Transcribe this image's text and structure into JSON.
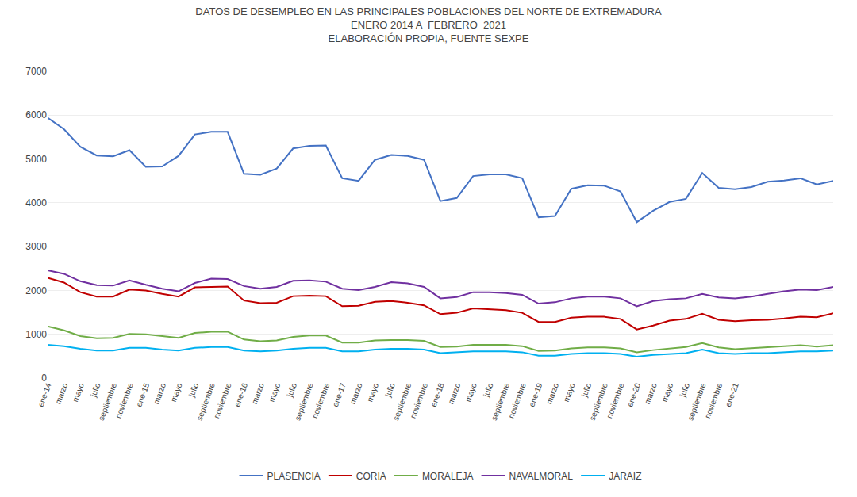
{
  "chart_data": {
    "type": "line",
    "title": "DATOS DE DESEMPLEO EN LAS PRINCIPALES POBLACIONES DEL NORTE DE EXTREMADURA",
    "subtitle": [
      "ENERO 2014 A  FEBRERO  2021",
      "ELABORACIÓN PROPIA, FUENTE SEXPE"
    ],
    "categories": [
      "ene-14",
      "marzo",
      "mayo",
      "julio",
      "septiembre",
      "noviembre",
      "ene-15",
      "marzo",
      "mayo",
      "julio",
      "septiembre",
      "noviembre",
      "ene-16",
      "marzo",
      "mayo",
      "julio",
      "septiembre",
      "noviembre",
      "ene-17",
      "marzo",
      "mayo",
      "julio",
      "septiembre",
      "noviembre",
      "ene-18",
      "marzo",
      "mayo",
      "julio",
      "septiembre",
      "noviembre",
      "ene-19",
      "marzo",
      "mayo",
      "julio",
      "septiembre",
      "noviembre",
      "ene-20",
      "marzo",
      "mayo",
      "julio",
      "septiembre",
      "noviembre",
      "ene-21",
      null,
      null,
      null,
      null,
      null,
      null
    ],
    "series": [
      {
        "name": "PLASENCIA",
        "color": "#4472C4",
        "values": [
          5940,
          5680,
          5280,
          5080,
          5060,
          5200,
          4820,
          4830,
          5070,
          5560,
          5620,
          5620,
          4660,
          4640,
          4780,
          5240,
          5300,
          5310,
          4560,
          4500,
          4980,
          5090,
          5070,
          4980,
          4040,
          4110,
          4610,
          4650,
          4650,
          4560,
          3670,
          3700,
          4320,
          4400,
          4390,
          4260,
          3560,
          3820,
          4020,
          4090,
          4680,
          4340,
          4310,
          4360,
          4480,
          4510,
          4560,
          4420,
          4500
        ]
      },
      {
        "name": "CORIA",
        "color": "#C00000",
        "values": [
          2290,
          2180,
          1960,
          1860,
          1860,
          2020,
          2000,
          1920,
          1860,
          2070,
          2080,
          2090,
          1770,
          1710,
          1720,
          1870,
          1880,
          1870,
          1640,
          1650,
          1740,
          1760,
          1720,
          1660,
          1460,
          1490,
          1590,
          1570,
          1550,
          1490,
          1280,
          1280,
          1380,
          1400,
          1400,
          1350,
          1110,
          1200,
          1310,
          1350,
          1470,
          1330,
          1300,
          1320,
          1330,
          1360,
          1400,
          1390,
          1480
        ]
      },
      {
        "name": "MORALEJA",
        "color": "#70AD47",
        "values": [
          1180,
          1090,
          960,
          910,
          920,
          1010,
          1000,
          960,
          920,
          1030,
          1060,
          1060,
          880,
          840,
          860,
          940,
          970,
          970,
          810,
          810,
          860,
          870,
          870,
          850,
          710,
          720,
          760,
          760,
          760,
          730,
          620,
          630,
          680,
          700,
          700,
          680,
          590,
          640,
          680,
          710,
          800,
          700,
          660,
          680,
          710,
          730,
          750,
          720,
          750
        ]
      },
      {
        "name": "NAVALMORAL",
        "color": "#7030A0",
        "values": [
          2460,
          2380,
          2210,
          2120,
          2110,
          2230,
          2130,
          2040,
          1980,
          2170,
          2270,
          2260,
          2100,
          2040,
          2080,
          2220,
          2230,
          2200,
          2040,
          2010,
          2080,
          2190,
          2160,
          2080,
          1820,
          1850,
          1960,
          1960,
          1940,
          1900,
          1700,
          1730,
          1820,
          1860,
          1860,
          1820,
          1640,
          1760,
          1800,
          1820,
          1920,
          1840,
          1820,
          1860,
          1920,
          1980,
          2020,
          2010,
          2080
        ]
      },
      {
        "name": "JARAIZ",
        "color": "#00B0F0",
        "values": [
          760,
          730,
          670,
          630,
          630,
          690,
          690,
          650,
          630,
          690,
          710,
          710,
          630,
          610,
          630,
          670,
          690,
          690,
          610,
          610,
          650,
          670,
          670,
          650,
          570,
          590,
          610,
          610,
          610,
          590,
          510,
          510,
          550,
          570,
          570,
          550,
          490,
          530,
          550,
          570,
          650,
          570,
          550,
          570,
          570,
          590,
          610,
          610,
          630
        ]
      }
    ],
    "ylim": [
      0,
      7000
    ],
    "yticks": [
      0,
      1000,
      2000,
      3000,
      4000,
      5000,
      6000,
      7000
    ],
    "grid": true,
    "legend": "bottom"
  }
}
